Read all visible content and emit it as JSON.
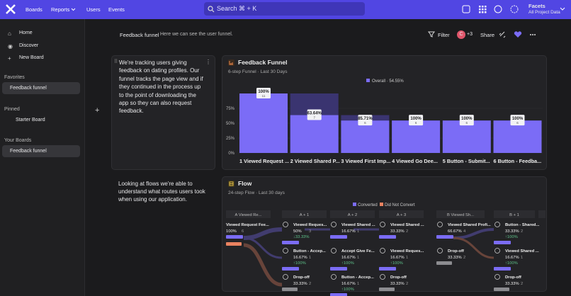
{
  "nav": {
    "items": [
      "Boards",
      "Reports",
      "Users",
      "Events"
    ],
    "search": "Search ⌘ + K",
    "project": {
      "title": "Facets",
      "subtitle": "All Project Data"
    }
  },
  "sidebar": {
    "items": [
      "Home",
      "Discover",
      "New Board"
    ],
    "sections": [
      {
        "title": "Favorites",
        "items": [
          "Feedback funnel"
        ]
      },
      {
        "title": "Pinned",
        "items": [
          "Starter Board"
        ]
      },
      {
        "title": "Your Boards",
        "items": [
          "Feedback funnel"
        ]
      }
    ]
  },
  "header": {
    "title": "Feedback funnel",
    "description": "Here we can see the user funnel.",
    "filter": "Filter",
    "avatar": "C",
    "extra_members": "+3",
    "share": "Share"
  },
  "notes": [
    "We're tracking users giving feedback on dating profiles. Our funnel tracks the page view and if they continued in the process up to the point of downloading the app so they can also request feedback.",
    "Looking at flows we're able to understand what routes users took when using our application."
  ],
  "funnel": {
    "title": "Feedback Funnel",
    "subtitle": "6-step Funnel · Last 30 Days",
    "legend": "Overall · 54.55%",
    "ylim": [
      0,
      100
    ],
    "yticks": [
      {
        "value": 0,
        "label": "0%"
      },
      {
        "value": 25,
        "label": "25%"
      },
      {
        "value": 50,
        "label": "50%"
      },
      {
        "value": 75,
        "label": "75%"
      }
    ],
    "categories": [
      "1 Viewed Request ...",
      "2 Viewed Shared P...",
      "3 Viewed First Imp...",
      "4 Viewed Go Dee...",
      "5 Button - Submit...",
      "6 Button - Feedba..."
    ],
    "values": [
      100,
      63.64,
      54.55,
      54.55,
      54.55,
      54.55
    ],
    "step_labels": [
      "100%",
      "63.64%",
      "85.71%",
      "100%",
      "100%",
      "100%"
    ],
    "counts": [
      11,
      7,
      6,
      6,
      6,
      6
    ],
    "color": "#7b6cf6"
  },
  "flow": {
    "title": "Flow",
    "subtitle": "24-step Flow · Last 30 days",
    "legend": [
      "Converted",
      "Did Not Convert"
    ],
    "columns": [
      {
        "header": "A Viewed Re...",
        "nodes": [
          {
            "name": "Viewed Request Fee...",
            "percent": "100%",
            "count": "6"
          }
        ]
      },
      {
        "header": "A + 1",
        "nodes": [
          {
            "name": "Viewed Reques...",
            "percent": "50%",
            "count": "3",
            "change": "↓33.33%"
          },
          {
            "name": "Button - Accep...",
            "percent": "16.67%",
            "count": "1",
            "change": "↑100%"
          },
          {
            "name": "Drop-off",
            "percent": "33.33%",
            "count": "2"
          }
        ]
      },
      {
        "header": "A + 2",
        "nodes": [
          {
            "name": "Viewed Shared ...",
            "percent": "16.67%",
            "count": "1"
          },
          {
            "name": "Accept Give Fe...",
            "percent": "16.67%",
            "count": "1",
            "change": "↑100%"
          },
          {
            "name": "Button - Accep...",
            "percent": "16.67%",
            "count": "1",
            "change": "↑100%"
          }
        ]
      },
      {
        "header": "A + 3",
        "nodes": [
          {
            "name": "Viewed Shared ...",
            "percent": "33.33%",
            "count": "2"
          },
          {
            "name": "Viewed Reques...",
            "percent": "16.67%",
            "count": "1",
            "change": "↑100%"
          },
          {
            "name": "Drop-off",
            "percent": "33.33%",
            "count": "2"
          }
        ]
      },
      {
        "header": "B Viewed Sh...",
        "nodes": [
          {
            "name": "Viewed Shared Profi...",
            "percent": "66.67%",
            "count": "4"
          },
          {
            "name": "Drop-off",
            "percent": "33.33%",
            "count": "2"
          }
        ]
      },
      {
        "header": "B + 1",
        "nodes": [
          {
            "name": "Button - Shared...",
            "percent": "33.33%",
            "count": "2",
            "change": "↑100%"
          },
          {
            "name": "Viewed Shared ...",
            "percent": "16.67%",
            "count": "1",
            "change": "↑100%"
          },
          {
            "name": "Drop-off",
            "percent": "33.33%",
            "count": "2"
          }
        ]
      }
    ]
  }
}
